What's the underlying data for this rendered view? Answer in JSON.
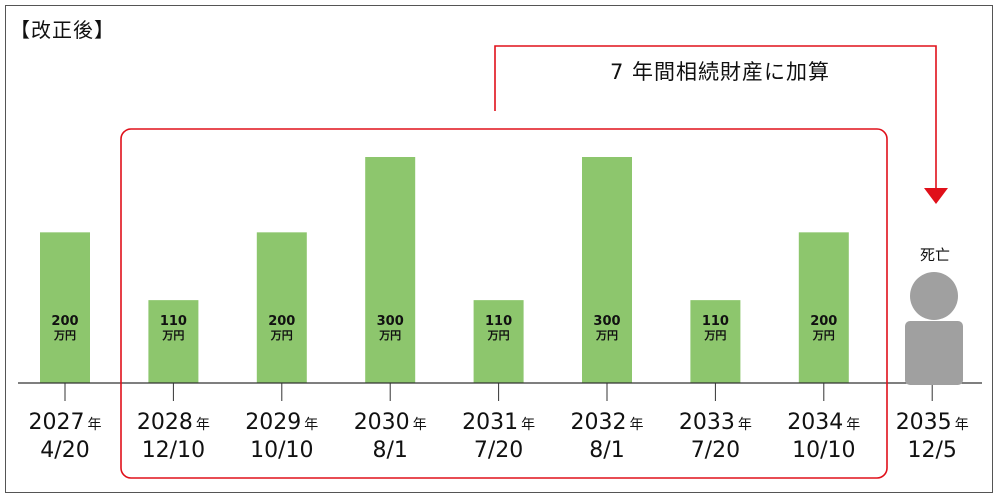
{
  "heading": "【改正後】",
  "annotation": "7 年間相続財産に加算",
  "death": {
    "label": "死亡",
    "year": "2035",
    "date": "12/5"
  },
  "year_suffix": "年",
  "colors": {
    "bar": "#8dc66d",
    "bracket": "#e0101a",
    "person": "#a0a0a0",
    "axis": "#333333"
  },
  "icons": {
    "death_marker": "person-silhouette-icon",
    "arrow": "arrow-down-icon"
  },
  "chart_data": {
    "type": "bar",
    "title": "【改正後】",
    "unit": "万円",
    "categories": [
      {
        "year": "2027",
        "date": "4/20"
      },
      {
        "year": "2028",
        "date": "12/10"
      },
      {
        "year": "2029",
        "date": "10/10"
      },
      {
        "year": "2030",
        "date": "8/1"
      },
      {
        "year": "2031",
        "date": "7/20"
      },
      {
        "year": "2032",
        "date": "8/1"
      },
      {
        "year": "2033",
        "date": "7/20"
      },
      {
        "year": "2034",
        "date": "10/10"
      }
    ],
    "values": [
      200,
      110,
      200,
      300,
      110,
      300,
      110,
      200
    ],
    "ylim": [
      0,
      300
    ],
    "grid": false,
    "highlighted_range": [
      "2028",
      "2034"
    ]
  }
}
